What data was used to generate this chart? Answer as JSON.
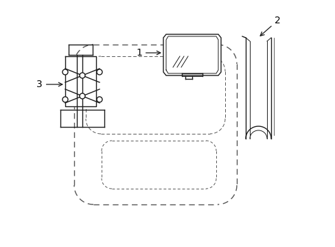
{
  "bg_color": "#ffffff",
  "line_color": "#1a1a1a",
  "dashed_color": "#555555",
  "label_color": "#000000",
  "fig_width": 4.89,
  "fig_height": 3.6,
  "dpi": 100
}
